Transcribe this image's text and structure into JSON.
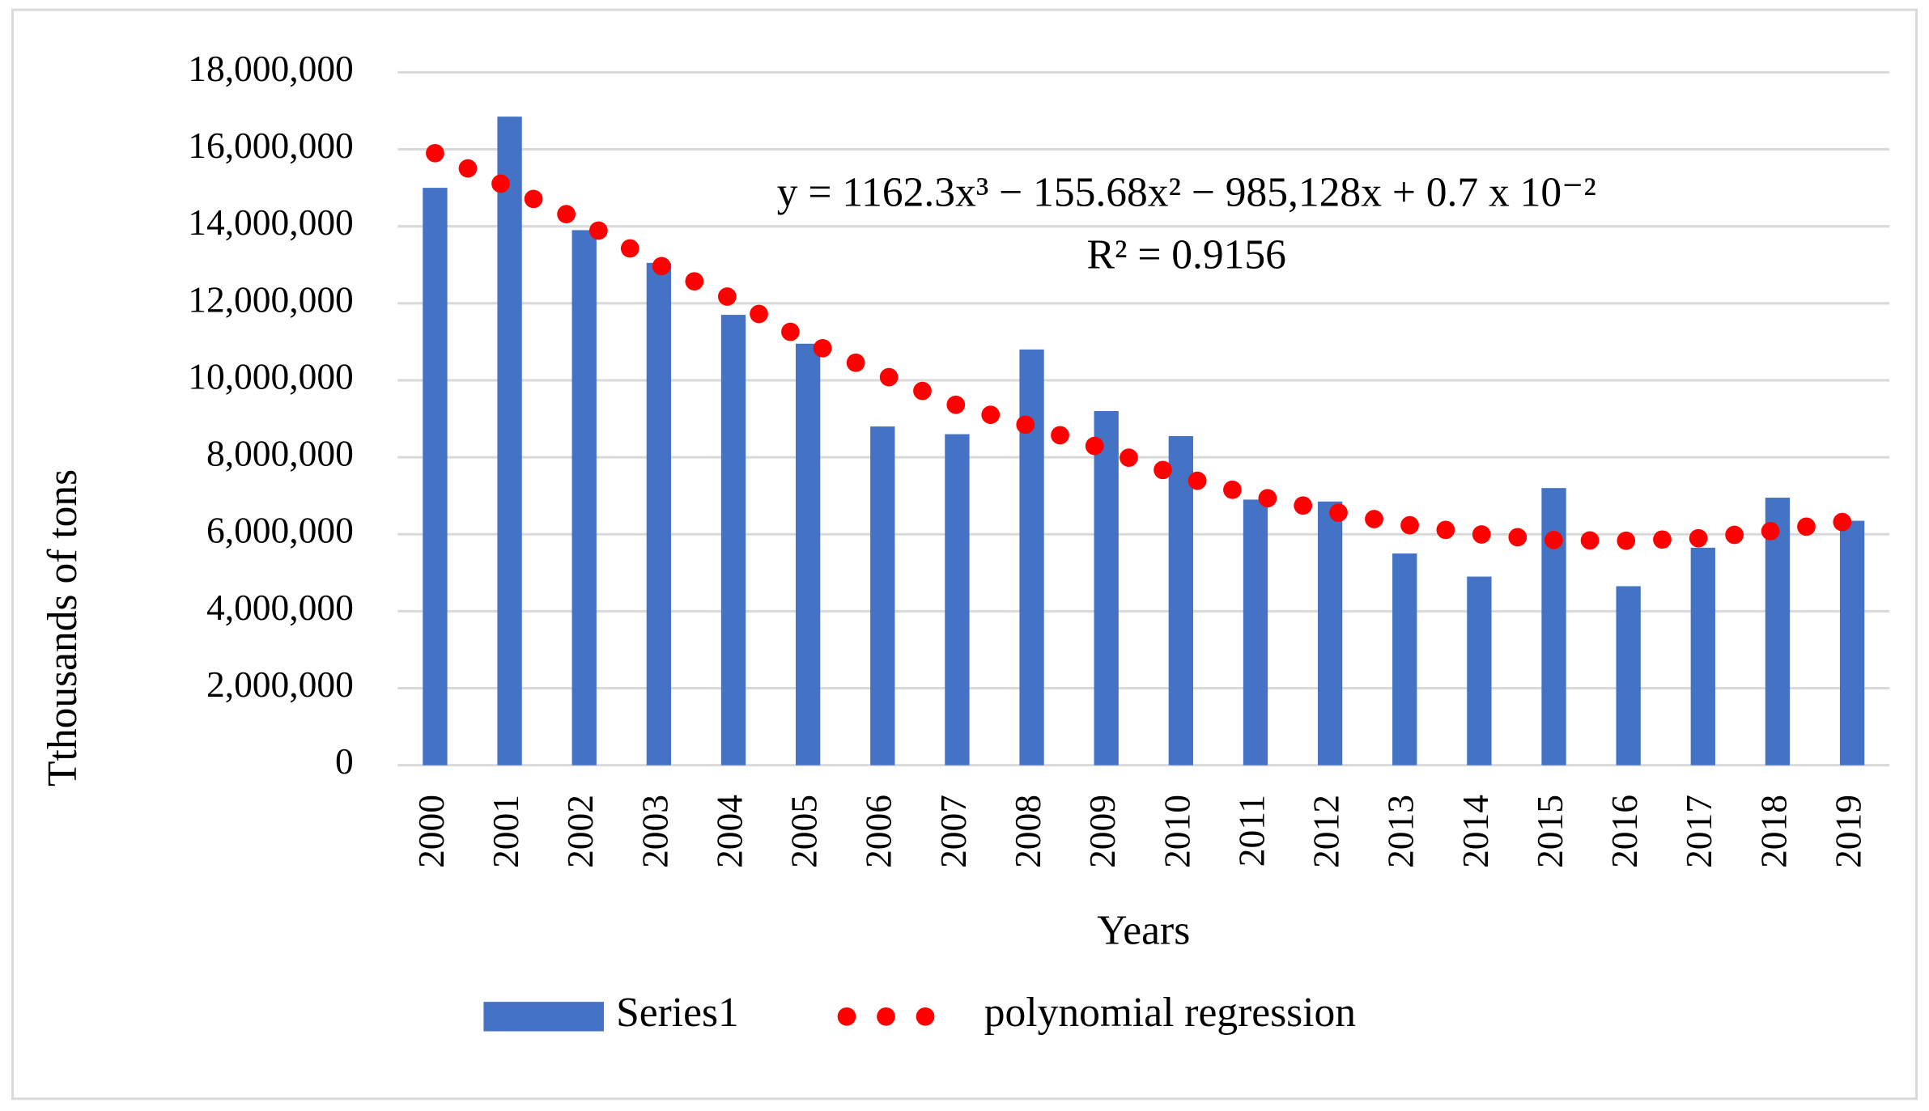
{
  "chart_data": {
    "type": "bar",
    "y_label": "Tthousands of tons",
    "x_label": "Years",
    "annotation_equation": "y = 1162.3x³ − 155.68x² − 985,128x + 0.7 x 10⁻²",
    "annotation_r2": "R² = 0.9156",
    "categories": [
      "2000",
      "2001",
      "2002",
      "2003",
      "2004",
      "2005",
      "2006",
      "2007",
      "2008",
      "2009",
      "2010",
      "2011",
      "2012",
      "2013",
      "2014",
      "2015",
      "2016",
      "2017",
      "2018",
      "2019"
    ],
    "series": [
      {
        "name": "Series1",
        "type": "bar",
        "color": "#4472c4",
        "values": [
          15000000,
          16850000,
          13900000,
          13050000,
          11700000,
          10950000,
          8800000,
          8600000,
          10800000,
          9200000,
          8550000,
          6900000,
          6850000,
          5500000,
          4900000,
          7200000,
          4650000,
          5650000,
          6950000,
          6350000
        ]
      },
      {
        "name": "polynomial regression",
        "type": "dotted-line",
        "color": "#ff0000",
        "values": [
          15900000,
          15000000,
          14100000,
          13000000,
          12100000,
          11000000,
          10150000,
          9350000,
          8800000,
          8200000,
          7500000,
          7000000,
          6600000,
          6250000,
          6000000,
          5850000,
          5830000,
          5900000,
          6100000,
          6350000
        ]
      }
    ],
    "ylim": [
      0,
      18000000
    ],
    "yticks": [
      0,
      {
        "value": 2000000,
        "label": "2,000,000"
      },
      {
        "value": 4000000,
        "label": "4,000,000"
      },
      {
        "value": 6000000,
        "label": "6,000,000"
      },
      {
        "value": 8000000,
        "label": "8,000,000"
      },
      {
        "value": 10000000,
        "label": "10,000,000"
      },
      {
        "value": 12000000,
        "label": "12,000,000"
      },
      {
        "value": 14000000,
        "label": "14,000,000"
      },
      {
        "value": 16000000,
        "label": "16,000,000"
      },
      {
        "value": 18000000,
        "label": "18,000,000"
      }
    ],
    "grid": true,
    "legend": "bottom"
  }
}
